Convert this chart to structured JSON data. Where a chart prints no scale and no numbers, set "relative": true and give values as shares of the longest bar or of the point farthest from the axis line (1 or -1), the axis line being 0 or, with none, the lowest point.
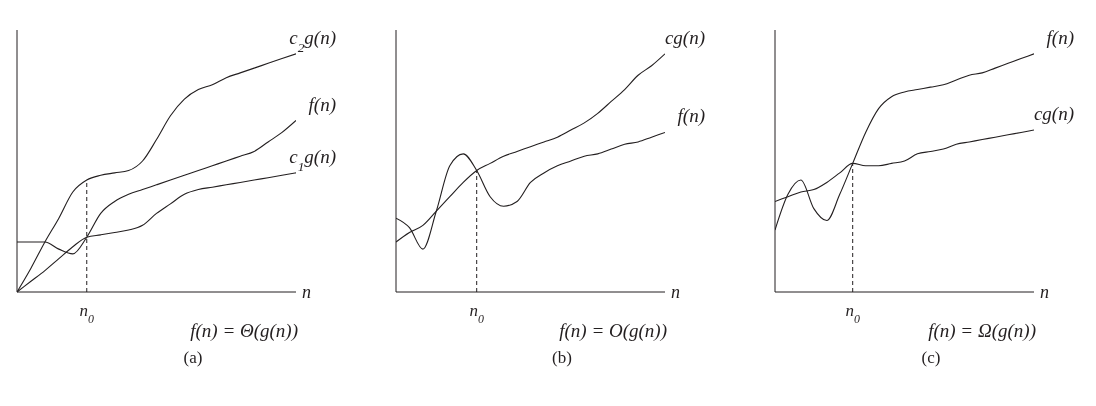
{
  "chart_data": [
    {
      "type": "line",
      "relative": true,
      "title": "(a)",
      "subtitle": "f(n) = Θ(g(n))",
      "xlabel": "n",
      "categories": [
        null,
        null,
        null,
        null,
        null,
        null,
        null,
        null,
        null,
        null,
        null,
        null,
        null,
        null,
        null,
        null,
        null,
        null,
        null,
        null,
        null
      ],
      "annotations": [
        "n$_{0}$"
      ],
      "series": [
        {
          "name": "c$_{2}$g(n)",
          "color": "#231f20",
          "values": [
            0,
            0.1,
            0.21,
            0.31,
            0.42,
            0.47,
            0.49,
            0.5,
            0.51,
            0.55,
            0.64,
            0.74,
            0.81,
            0.85,
            0.87,
            0.9,
            0.92,
            0.94,
            0.96,
            0.98,
            1
          ]
        },
        {
          "name": "f(n)",
          "color": "#231f20",
          "values": [
            0.21,
            0.21,
            0.21,
            0.18,
            0.16,
            0.23,
            0.33,
            0.38,
            0.41,
            0.43,
            0.45,
            0.47,
            0.49,
            0.51,
            0.53,
            0.55,
            0.57,
            0.59,
            0.63,
            0.67,
            0.72
          ]
        },
        {
          "name": "c$_{1}$g(n)",
          "color": "#231f20",
          "values": [
            0,
            0.045,
            0.09,
            0.14,
            0.19,
            0.23,
            0.24,
            0.25,
            0.26,
            0.28,
            0.33,
            0.37,
            0.41,
            0.43,
            0.44,
            0.45,
            0.46,
            0.47,
            0.48,
            0.49,
            0.5
          ]
        }
      ]
    },
    {
      "type": "line",
      "relative": true,
      "title": "(b)",
      "subtitle": "f(n) = O(g(n))",
      "xlabel": "n",
      "categories": [
        null,
        null,
        null,
        null,
        null,
        null,
        null,
        null,
        null,
        null,
        null,
        null,
        null,
        null,
        null,
        null,
        null,
        null,
        null,
        null,
        null
      ],
      "annotations": [
        "n$_{0}$"
      ],
      "series": [
        {
          "name": "cg(n)",
          "color": "#231f20",
          "values": [
            0.21,
            0.25,
            0.28,
            0.34,
            0.4,
            0.46,
            0.51,
            0.54,
            0.57,
            0.59,
            0.61,
            0.63,
            0.65,
            0.68,
            0.71,
            0.75,
            0.8,
            0.85,
            0.91,
            0.95,
            1
          ]
        },
        {
          "name": "f(n)",
          "color": "#231f20",
          "values": [
            0.31,
            0.27,
            0.18,
            0.34,
            0.53,
            0.58,
            0.51,
            0.4,
            0.36,
            0.38,
            0.46,
            0.5,
            0.53,
            0.55,
            0.57,
            0.58,
            0.6,
            0.62,
            0.63,
            0.65,
            0.67
          ]
        }
      ]
    },
    {
      "type": "line",
      "relative": true,
      "title": "(c)",
      "subtitle": "f(n) = Ω(g(n))",
      "xlabel": "n",
      "categories": [
        null,
        null,
        null,
        null,
        null,
        null,
        null,
        null,
        null,
        null,
        null,
        null,
        null,
        null,
        null,
        null,
        null,
        null,
        null,
        null,
        null
      ],
      "annotations": [
        "n$_{0}$"
      ],
      "series": [
        {
          "name": "f(n)",
          "color": "#231f20",
          "values": [
            0.26,
            0.41,
            0.47,
            0.35,
            0.3,
            0.41,
            0.54,
            0.67,
            0.77,
            0.82,
            0.84,
            0.85,
            0.86,
            0.87,
            0.89,
            0.91,
            0.92,
            0.94,
            0.96,
            0.98,
            1
          ]
        },
        {
          "name": "cg(n)",
          "color": "#231f20",
          "values": [
            0.38,
            0.4,
            0.42,
            0.43,
            0.46,
            0.5,
            0.54,
            0.53,
            0.53,
            0.54,
            0.55,
            0.58,
            0.59,
            0.6,
            0.62,
            0.63,
            0.64,
            0.65,
            0.66,
            0.67,
            0.68
          ]
        }
      ]
    }
  ]
}
